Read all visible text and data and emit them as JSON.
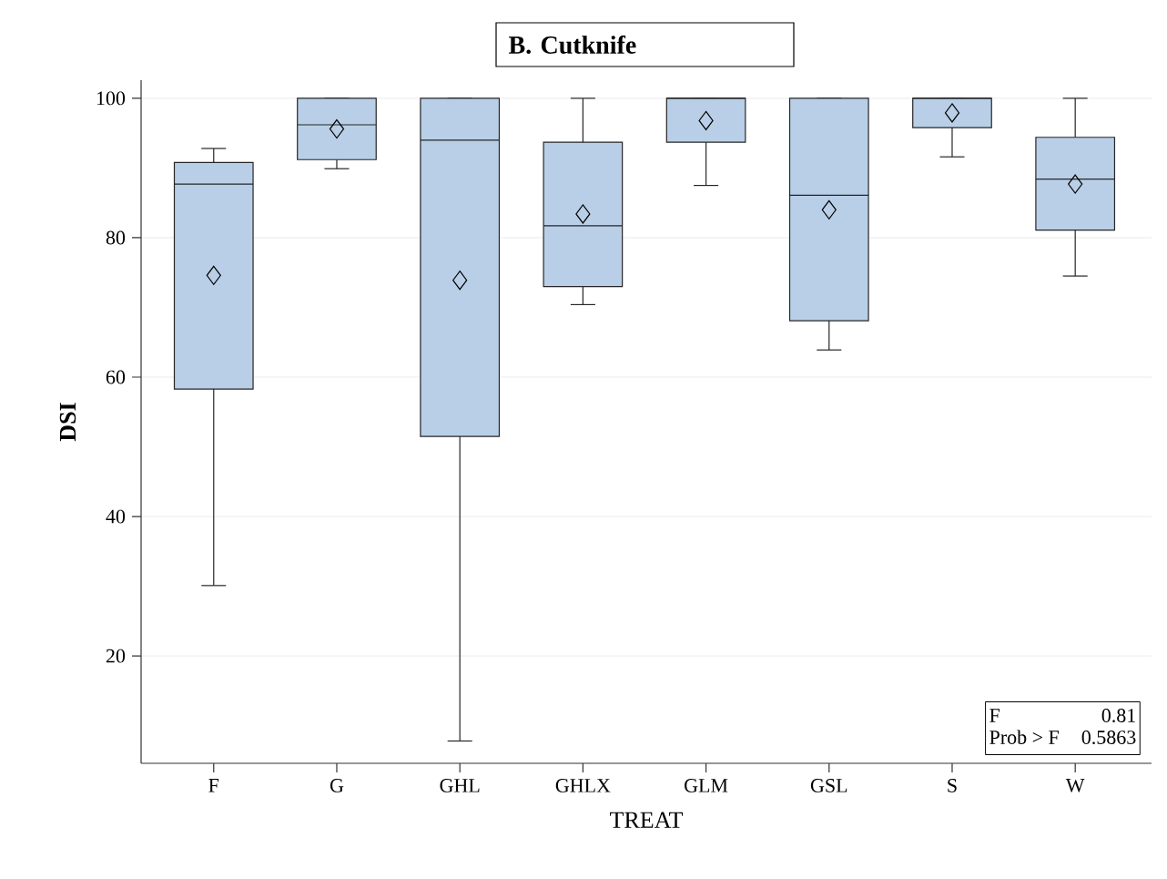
{
  "chart_data": {
    "type": "box",
    "title": "B. Cutknife",
    "xlabel": "TREAT",
    "ylabel": "DSI",
    "categories": [
      "F",
      "G",
      "GHL",
      "GHLX",
      "GLM",
      "GSL",
      "S",
      "W"
    ],
    "color": "#b9cfe7",
    "boxes": [
      {
        "low": 30.1,
        "q1": 58.3,
        "median": 87.7,
        "q3": 90.8,
        "high": 92.8,
        "mean": 74.6
      },
      {
        "low": 89.9,
        "q1": 91.2,
        "median": 96.2,
        "q3": 100,
        "high": 100,
        "mean": 95.6
      },
      {
        "low": 7.8,
        "q1": 51.5,
        "median": 94.0,
        "q3": 100,
        "high": 100,
        "mean": 73.9
      },
      {
        "low": 70.4,
        "q1": 73.0,
        "median": 81.7,
        "q3": 93.7,
        "high": 100,
        "mean": 83.4
      },
      {
        "low": 87.5,
        "q1": 93.7,
        "median": 100,
        "q3": 100,
        "high": 100,
        "mean": 96.8
      },
      {
        "low": 63.9,
        "q1": 68.1,
        "median": 86.1,
        "q3": 100,
        "high": 100,
        "mean": 84.0
      },
      {
        "low": 91.6,
        "q1": 95.8,
        "median": 100,
        "q3": 100,
        "high": 100,
        "mean": 97.9
      },
      {
        "low": 74.5,
        "q1": 81.1,
        "median": 88.4,
        "q3": 94.4,
        "high": 100,
        "mean": 87.7
      }
    ],
    "ylim": [
      4.6,
      102.6
    ],
    "yticks": [
      20,
      40,
      60,
      80,
      100
    ],
    "grid": "y",
    "annotations": [
      "F",
      "0.81",
      "Prob > F",
      "0.5863"
    ]
  }
}
